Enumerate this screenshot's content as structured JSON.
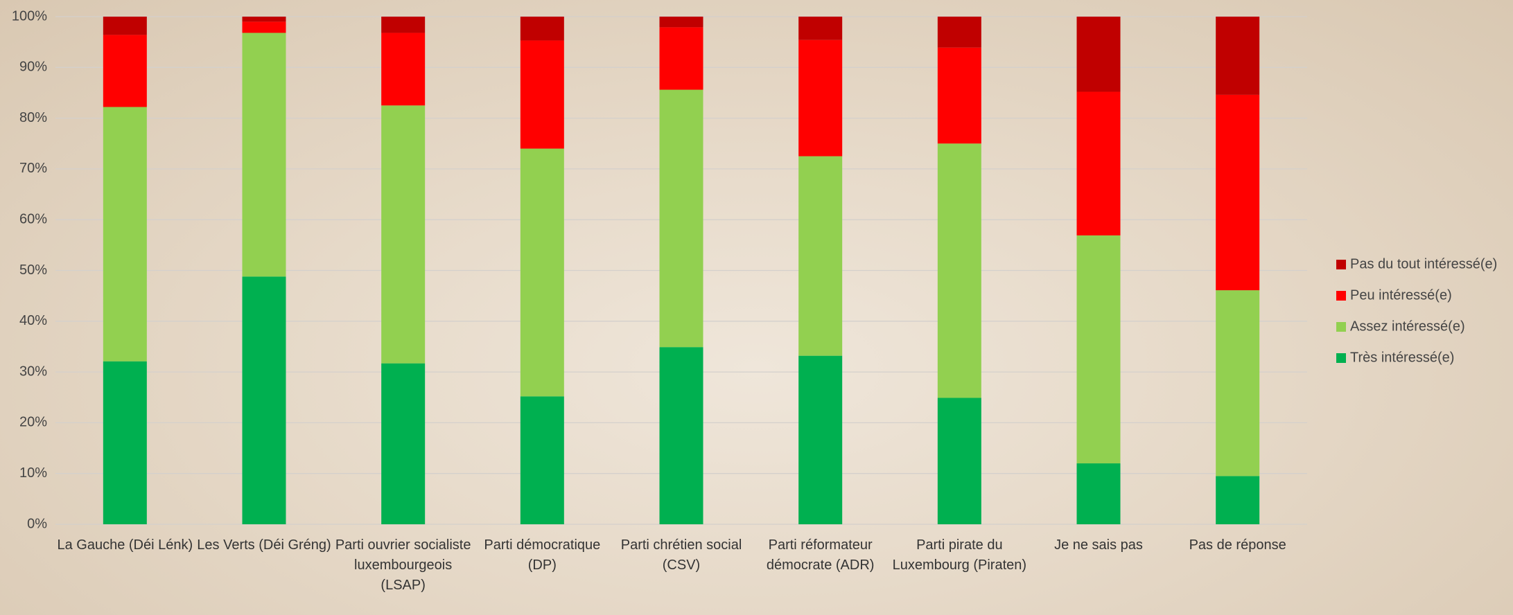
{
  "chart_data": {
    "type": "stacked_bar",
    "categories": [
      "La Gauche (Déi Lénk)",
      "Les Verts (Déi Gréng)",
      "Parti ouvrier socialiste luxembourgeois (LSAP)",
      "Parti démocratique (DP)",
      "Parti chrétien social (CSV)",
      "Parti réformateur démocrate (ADR)",
      "Parti pirate du Luxembourg (Piraten)",
      "Je ne sais pas",
      "Pas de réponse"
    ],
    "series": [
      {
        "name": "Très intéressé(e)",
        "color": "#00b050",
        "values": [
          32.1,
          48.8,
          31.7,
          25.2,
          34.9,
          33.2,
          24.9,
          12.0,
          9.5
        ]
      },
      {
        "name": "Assez intéressé(e)",
        "color": "#92d050",
        "values": [
          50.1,
          48.0,
          50.8,
          48.8,
          50.7,
          39.3,
          50.1,
          44.9,
          36.6
        ]
      },
      {
        "name": "Peu intéressé(e)",
        "color": "#ff0000",
        "values": [
          14.2,
          2.2,
          14.3,
          21.3,
          12.3,
          22.9,
          18.9,
          28.3,
          38.5
        ]
      },
      {
        "name": "Pas du tout intéressé(e)",
        "color": "#c00000",
        "values": [
          3.6,
          1.0,
          3.2,
          4.7,
          2.1,
          4.6,
          6.1,
          14.8,
          15.4
        ]
      }
    ],
    "ylim": [
      0,
      100
    ],
    "yticks": [
      {
        "value": 0,
        "label": "0%"
      },
      {
        "value": 10,
        "label": "10%"
      },
      {
        "value": 20,
        "label": "20%"
      },
      {
        "value": 30,
        "label": "30%"
      },
      {
        "value": 40,
        "label": "40%"
      },
      {
        "value": 50,
        "label": "50%"
      },
      {
        "value": 60,
        "label": "60%"
      },
      {
        "value": 70,
        "label": "70%"
      },
      {
        "value": 80,
        "label": "80%"
      },
      {
        "value": 90,
        "label": "90%"
      },
      {
        "value": 100,
        "label": "100%"
      }
    ],
    "grid": true,
    "legend": "right"
  }
}
